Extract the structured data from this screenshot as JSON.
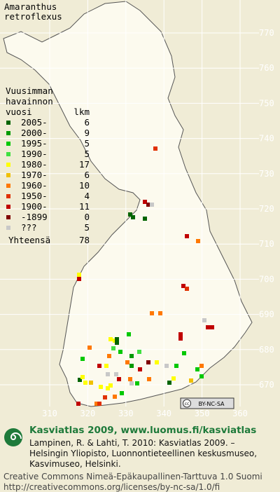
{
  "title": {
    "lines": [
      "Amaranthus",
      "retroflexus"
    ]
  },
  "legend": {
    "header": [
      "Vuusimman",
      "havainnon",
      "vuosi",
      "lkm"
    ],
    "rows": [
      {
        "label": "2005-",
        "count": 6,
        "color": "#006400"
      },
      {
        "label": "2000-",
        "count": 9,
        "color": "#009a00"
      },
      {
        "label": "1995-",
        "count": 5,
        "color": "#00c800"
      },
      {
        "label": "1990-",
        "count": 5,
        "color": "#40e040"
      },
      {
        "label": "1980-",
        "count": 17,
        "color": "#ffff00"
      },
      {
        "label": "1970-",
        "count": 6,
        "color": "#f0c000"
      },
      {
        "label": "1960-",
        "count": 10,
        "color": "#ff7800"
      },
      {
        "label": "1950-",
        "count": 4,
        "color": "#e03000"
      },
      {
        "label": "1900-",
        "count": 11,
        "color": "#c00000"
      },
      {
        "label": "-1899",
        "count": 0,
        "color": "#800000"
      },
      {
        "label": "???",
        "count": 5,
        "color": "#c8c8c8"
      }
    ],
    "total": {
      "label": "Yhteensä",
      "count": 78
    }
  },
  "grid": {
    "x_labels": [
      310,
      320,
      330,
      340,
      350,
      360
    ],
    "y_labels": [
      770,
      760,
      750,
      740,
      730,
      720,
      710,
      700,
      690,
      680,
      670
    ]
  },
  "badge": {
    "text": "BY-NC-SA"
  },
  "footer": {
    "heading": "Kasviatlas 2009, www.luomus.fi/kasviatlas",
    "citation": [
      "Lampinen, R. & Lahti, T. 2010: Kasviatlas 2009. –",
      "Helsingin Yliopisto, Luonnontieteellinen keskusmuseo,",
      "Kasvimuseo, Helsinki."
    ],
    "license": [
      "Creative Commons Nimeä-Epäkaupallinen-Tarttuva 1.0 Suomi",
      "http://creativecommons.org/licenses/by-nc-sa/1.0/fi"
    ]
  }
}
